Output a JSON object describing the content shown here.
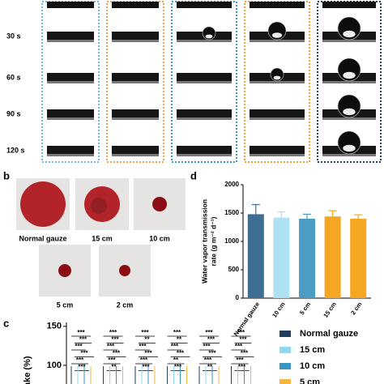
{
  "top_panel": {
    "time_labels": [
      "30 s",
      "60 s",
      "90 s",
      "120 s"
    ]
  },
  "panel_b": {
    "label": "b",
    "captions": [
      "Normal gauze",
      "15 cm",
      "10 cm",
      "5 cm",
      "2 cm"
    ]
  },
  "chart_data": [
    {
      "type": "bar",
      "panel_label": "d",
      "ylabel": [
        "Water vapor transmission",
        "rate (g m⁻² d⁻¹)"
      ],
      "categories": [
        "Normal gauze",
        "10 cm",
        "5 cm",
        "15 cm",
        "2 cm"
      ],
      "values": [
        1480,
        1420,
        1400,
        1440,
        1400
      ],
      "errors": [
        170,
        100,
        80,
        100,
        70
      ],
      "colors": [
        "#3e6f93",
        "#aee2f3",
        "#4c9dc6",
        "#f5a623",
        "#f5a623"
      ],
      "ylim": [
        0,
        2000
      ],
      "yticks": [
        0,
        500,
        1000,
        1500,
        2000
      ]
    },
    {
      "type": "significance",
      "panel_label": "c",
      "ylabel": "ake (%)",
      "ylim": [
        76,
        155
      ],
      "yticks": [
        100,
        150
      ],
      "annotations": [
        [
          "***",
          "***",
          "***",
          "***",
          "***",
          "***"
        ],
        [
          "***",
          "***",
          "***",
          "***",
          "***",
          "**"
        ],
        [
          "***",
          "**",
          "***",
          "***",
          "***",
          "***"
        ],
        [
          "***",
          "**",
          "***",
          "***",
          "**",
          "***"
        ],
        [
          "***",
          "***",
          "***",
          "***",
          "***",
          "**"
        ],
        [
          "***",
          "***",
          "***",
          "***",
          "***",
          "***"
        ]
      ],
      "series": [
        {
          "name": "Normal gauze",
          "color": "#1f3f5c"
        },
        {
          "name": "15 cm",
          "color": "#8fd8ef"
        },
        {
          "name": "10 cm",
          "color": "#3a95bf"
        },
        {
          "name": "5 cm",
          "color": "#f6b540"
        }
      ]
    }
  ]
}
